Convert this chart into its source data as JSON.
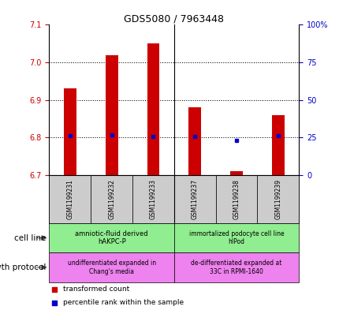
{
  "title": "GDS5080 / 7963448",
  "samples": [
    "GSM1199231",
    "GSM1199232",
    "GSM1199233",
    "GSM1199237",
    "GSM1199238",
    "GSM1199239"
  ],
  "red_values": [
    6.93,
    7.02,
    7.05,
    6.88,
    6.71,
    6.86
  ],
  "blue_values": [
    6.805,
    6.807,
    6.803,
    6.802,
    6.793,
    6.805
  ],
  "ylim": [
    6.7,
    7.1
  ],
  "yticks_left": [
    6.7,
    6.8,
    6.9,
    7.0,
    7.1
  ],
  "yticks_right": [
    0,
    25,
    50,
    75,
    100
  ],
  "yticks_right_labels": [
    "0",
    "25",
    "50",
    "75",
    "100%"
  ],
  "bar_bottom": 6.7,
  "red_color": "#cc0000",
  "blue_color": "#0000cc",
  "bar_width": 0.3,
  "sample_bg_color": "#cccccc",
  "cell_line_color": "#90EE90",
  "growth_color": "#EE82EE",
  "cell_line_label1": "amniotic-fluid derived\nhAKPC-P",
  "cell_line_label2": "immortalized podocyte cell line\nhIPod",
  "growth_label1": "undifferentiated expanded in\nChang's media",
  "growth_label2": "de-differentiated expanded at\n33C in RPMI-1640"
}
